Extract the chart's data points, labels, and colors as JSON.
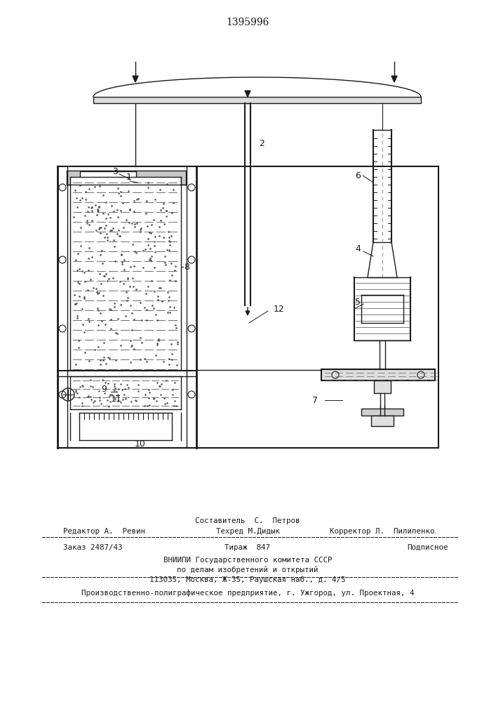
{
  "title": "1395996",
  "bg_color": "#ffffff",
  "line_color": "#1a1a1a",
  "title_fontsize": 10,
  "body_fontsize": 8,
  "footer": {
    "sestavitel": "Составитель  С.  Петров",
    "redaktor": "Редактор А.  Ревин",
    "tekhred": "Техред М.Дидык",
    "korrektor": "Корректор Л.  Пилипенко",
    "zakaz": "Заказ 2487/43",
    "tirazh": "Тираж  847",
    "podpisnoe": "Подписное",
    "vniipи": "ВНИИПИ Государственного комитета СССР",
    "dela": "по делам изобретений и открытий",
    "address": "113035, Москва, Ж-35, Раушская наб., д. 4/5",
    "uzhorod": "Производственно-полиграфическое предприятие, г. Ужгород, ул. Проектная, 4"
  }
}
